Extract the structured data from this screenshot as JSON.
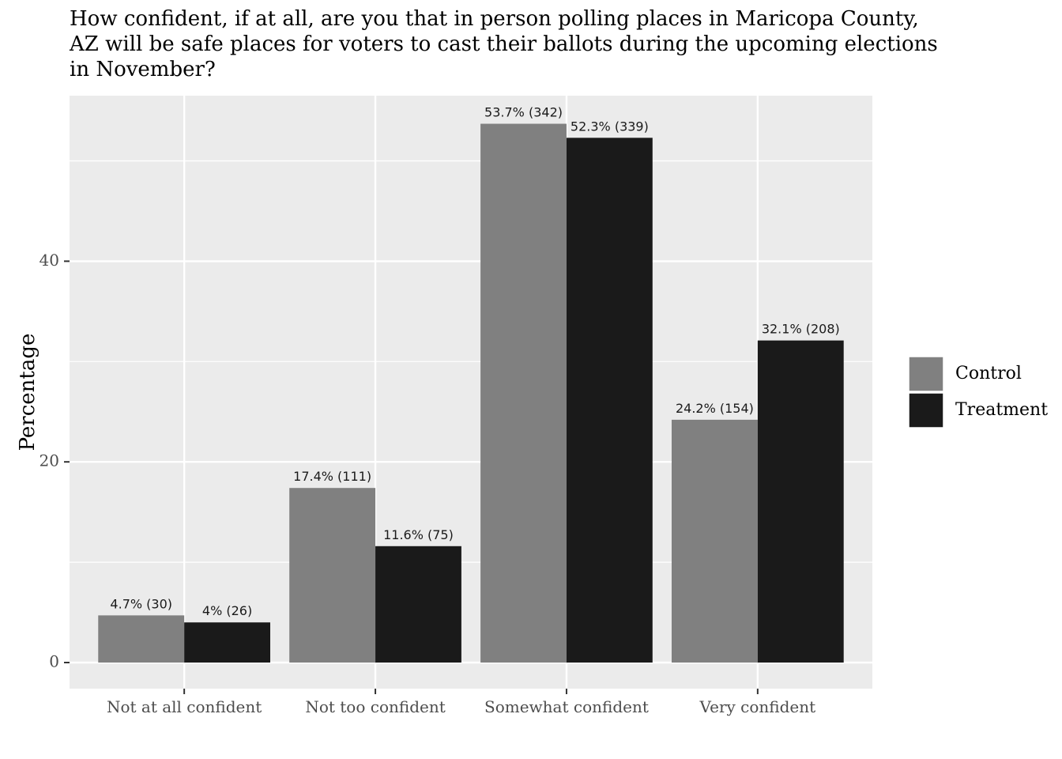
{
  "chart_data": {
    "type": "bar",
    "title_lines": [
      "How confident, if at all, are you that in person polling places in Maricopa County,",
      "AZ will be safe places for voters to cast their ballots during the upcoming elections",
      "in November?"
    ],
    "xlabel": "",
    "ylabel": "Percentage",
    "ylim": [
      -2.6,
      56.5
    ],
    "yticks": [
      0,
      20,
      40
    ],
    "categories": [
      "Not at all confident",
      "Not too confident",
      "Somewhat confident",
      "Very confident"
    ],
    "series": [
      {
        "name": "Control",
        "color": "#808080",
        "values": [
          4.7,
          17.4,
          53.7,
          24.2
        ],
        "labels": [
          "4.7% (30)",
          "17.4% (111)",
          "53.7% (342)",
          "24.2% (154)"
        ]
      },
      {
        "name": "Treatment",
        "color": "#1a1a1a",
        "values": [
          4.0,
          11.6,
          52.3,
          32.1
        ],
        "labels": [
          "4% (26)",
          "11.6% (75)",
          "52.3% (339)",
          "32.1% (208)"
        ]
      }
    ],
    "legend_position": "right",
    "grid": true,
    "panel_background": "#ebebeb",
    "grid_color": "#ffffff"
  }
}
